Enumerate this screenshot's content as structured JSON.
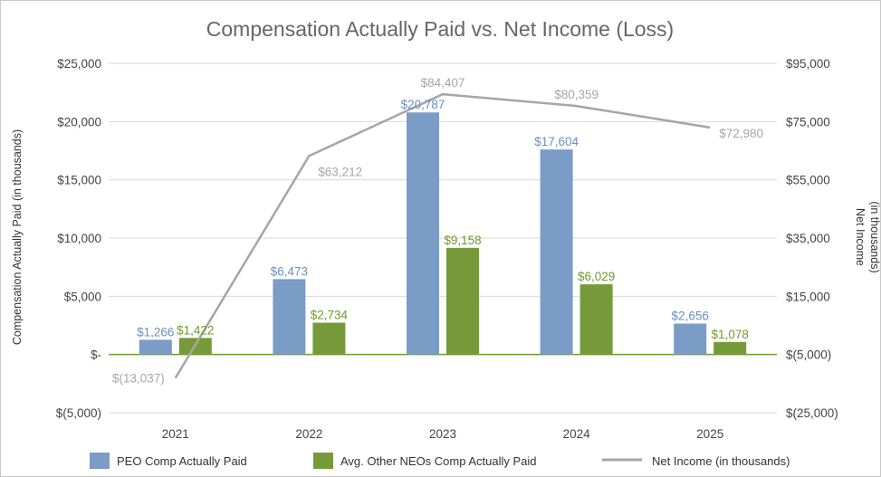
{
  "chart_data": {
    "type": "bar",
    "title": "Compensation Actually Paid vs. Net Income (Loss)",
    "categories": [
      "2021",
      "2022",
      "2023",
      "2024",
      "2025"
    ],
    "ylabel": "Compensation Actually Paid (in thousands)",
    "y2label_lines": [
      "Net Income",
      "(in thousands)"
    ],
    "ylim": [
      -5000,
      25000
    ],
    "y2lim": [
      -25000,
      95000
    ],
    "y_ticks": [
      25000,
      20000,
      15000,
      10000,
      5000,
      0,
      -5000
    ],
    "y_tick_labels": [
      "$25,000",
      "$20,000",
      "$15,000",
      "$10,000",
      "$5,000",
      "$-",
      "$(5,000)"
    ],
    "y2_ticks": [
      95000,
      75000,
      55000,
      35000,
      15000,
      -5000,
      -25000
    ],
    "y2_tick_labels": [
      "$95,000",
      "$75,000",
      "$55,000",
      "$35,000",
      "$15,000",
      "$(5,000)",
      "$(25,000)"
    ],
    "series": [
      {
        "name": "PEO Comp Actually Paid",
        "kind": "bar",
        "axis": "left",
        "color": "#7a9cc6",
        "label_color": "#6b8fc0",
        "values": [
          1266,
          6473,
          20787,
          17604,
          2656
        ],
        "labels": [
          "$1,266",
          "$6,473",
          "$20,787",
          "$17,604",
          "$2,656"
        ]
      },
      {
        "name": "Avg. Other NEOs Comp Actually Paid",
        "kind": "bar",
        "axis": "left",
        "color": "#769a3a",
        "label_color": "#6f9a2a",
        "values": [
          1422,
          2734,
          9158,
          6029,
          1078
        ],
        "labels": [
          "$1,422",
          "$2,734",
          "$9,158",
          "$6,029",
          "$1,078"
        ]
      },
      {
        "name": "Net Income (in thousands)",
        "kind": "line",
        "axis": "right",
        "color": "#a6a6a6",
        "label_color": "#a6a6a6",
        "values": [
          -13037,
          63212,
          84407,
          80359,
          72980
        ],
        "labels": [
          "$(13,037)",
          "$63,212",
          "$84,407",
          "$80,359",
          "$72,980"
        ]
      }
    ],
    "legend_position": "bottom",
    "zero_line_color": "#6f9a2a",
    "grid": true
  }
}
